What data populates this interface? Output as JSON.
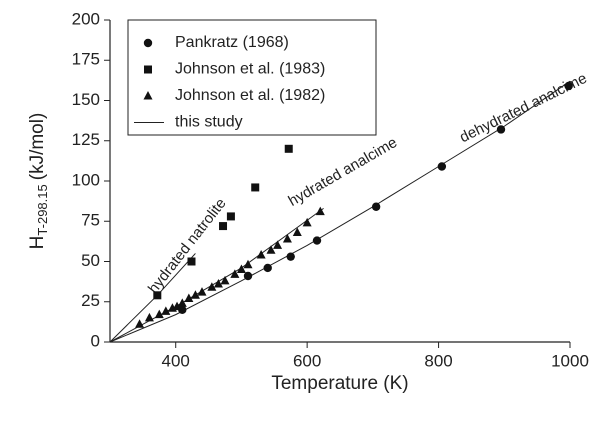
{
  "chart_data": {
    "type": "scatter",
    "xlabel": "Temperature (K)",
    "ylabel": {
      "main": "H",
      "sub": "T-298.15",
      "unit": "(kJ/mol)"
    },
    "xlim": [
      300,
      1000
    ],
    "ylim": [
      0,
      200
    ],
    "xticks": [
      400,
      600,
      800,
      1000
    ],
    "yticks": [
      0,
      25,
      50,
      75,
      100,
      125,
      150,
      175,
      200
    ],
    "legend": "upper left",
    "series": [
      {
        "name": "Pankratz (1968)",
        "marker": "circle",
        "color": "#111",
        "x": [
          410,
          510,
          540,
          575,
          615,
          705,
          805,
          895,
          998
        ],
        "values": [
          20,
          41,
          46,
          53,
          63,
          84,
          109,
          132,
          159
        ]
      },
      {
        "name": "Johnson et al. (1983)",
        "marker": "square",
        "color": "#111",
        "x": [
          372,
          424,
          472,
          484,
          521,
          572
        ],
        "values": [
          29,
          50,
          72,
          78,
          96,
          120
        ]
      },
      {
        "name": "Johnson et al. (1982)",
        "marker": "triangle",
        "color": "#111",
        "x": [
          345,
          360,
          375,
          385,
          395,
          402,
          410,
          420,
          430,
          440,
          455,
          465,
          475,
          490,
          500,
          510,
          530,
          545,
          555,
          570,
          585,
          600,
          620
        ],
        "values": [
          11,
          15,
          17,
          19,
          21,
          22,
          24,
          27,
          29,
          31,
          34,
          36,
          38,
          42,
          45,
          48,
          54,
          57,
          60,
          64,
          68,
          74,
          81
        ]
      }
    ],
    "line_legend": "this study",
    "line_color": "#222",
    "lines": [
      {
        "label": "hydrated natrolite",
        "x": [
          300,
          372,
          430
        ],
        "values": [
          0,
          29,
          55
        ]
      },
      {
        "label": "hydrated analcime",
        "x": [
          300,
          400,
          500,
          625
        ],
        "values": [
          0,
          22,
          46,
          83
        ]
      },
      {
        "label": "dehydrated analcime",
        "x": [
          300,
          400,
          500,
          600,
          700,
          800,
          900,
          1000
        ],
        "values": [
          0,
          17,
          38,
          60,
          84,
          109,
          134,
          162
        ]
      }
    ]
  }
}
